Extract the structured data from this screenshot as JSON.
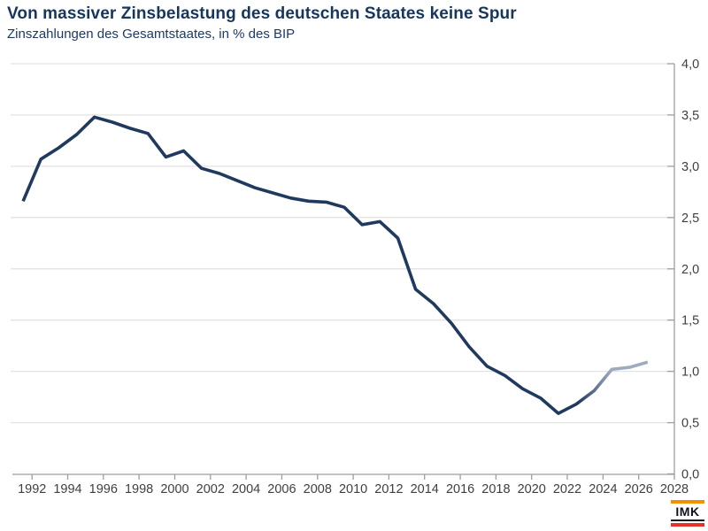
{
  "header": {
    "title": "Von massiver Zinsbelastung des deutschen Staates keine Spur",
    "subtitle": "Zinszahlungen des Gesamtstaates, in % des BIP"
  },
  "chart_data": {
    "type": "line",
    "title": "Von massiver Zinsbelastung des deutschen Staates keine Spur",
    "subtitle": "Zinszahlungen des Gesamtstaates, in % des BIP",
    "unit": "% des BIP",
    "x": [
      1991,
      1992,
      1993,
      1994,
      1995,
      1996,
      1997,
      1998,
      1999,
      2000,
      2001,
      2002,
      2003,
      2004,
      2005,
      2006,
      2007,
      2008,
      2009,
      2010,
      2011,
      2012,
      2013,
      2014,
      2015,
      2016,
      2017,
      2018,
      2019,
      2020,
      2021,
      2022,
      2023,
      2024,
      2025,
      2026
    ],
    "series": [
      {
        "name": "Zinszahlungen des Gesamtstaates in % des BIP",
        "values": [
          2.66,
          3.07,
          3.18,
          3.31,
          3.48,
          3.43,
          3.37,
          3.32,
          3.09,
          3.15,
          2.98,
          2.93,
          2.86,
          2.79,
          2.74,
          2.69,
          2.66,
          2.65,
          2.6,
          2.43,
          2.46,
          2.3,
          1.8,
          1.66,
          1.47,
          1.24,
          1.05,
          0.96,
          0.83,
          0.74,
          0.59,
          0.68,
          0.81,
          1.02,
          1.04,
          1.09
        ]
      }
    ],
    "forecast_start_year": 2024,
    "x_tick_years": [
      1992,
      1994,
      1996,
      1998,
      2000,
      2002,
      2004,
      2006,
      2008,
      2010,
      2012,
      2014,
      2016,
      2018,
      2020,
      2022,
      2024,
      2026,
      2028
    ],
    "y_tick_labels": [
      "0,0",
      "0,5",
      "1,0",
      "1,5",
      "2,0",
      "2,5",
      "3,0",
      "3,5",
      "4,0"
    ],
    "y_tick_values": [
      0.0,
      0.5,
      1.0,
      1.5,
      2.0,
      2.5,
      3.0,
      3.5,
      4.0
    ],
    "xlim": [
      1991,
      2028
    ],
    "ylim": [
      0,
      4.0
    ],
    "grid": "horizontal",
    "legend": "none",
    "colors": {
      "line": "#1f3a5e",
      "forecast": "#9dabbf",
      "gridline": "#e3e3e3",
      "axis": "#9e9e9e",
      "tick_text": "#3f3f3f",
      "title_text": "#17365d"
    }
  },
  "logo": {
    "text": "IMK",
    "top_bar_color": "#f29100",
    "bottom_bar_color": "#e5332a"
  }
}
